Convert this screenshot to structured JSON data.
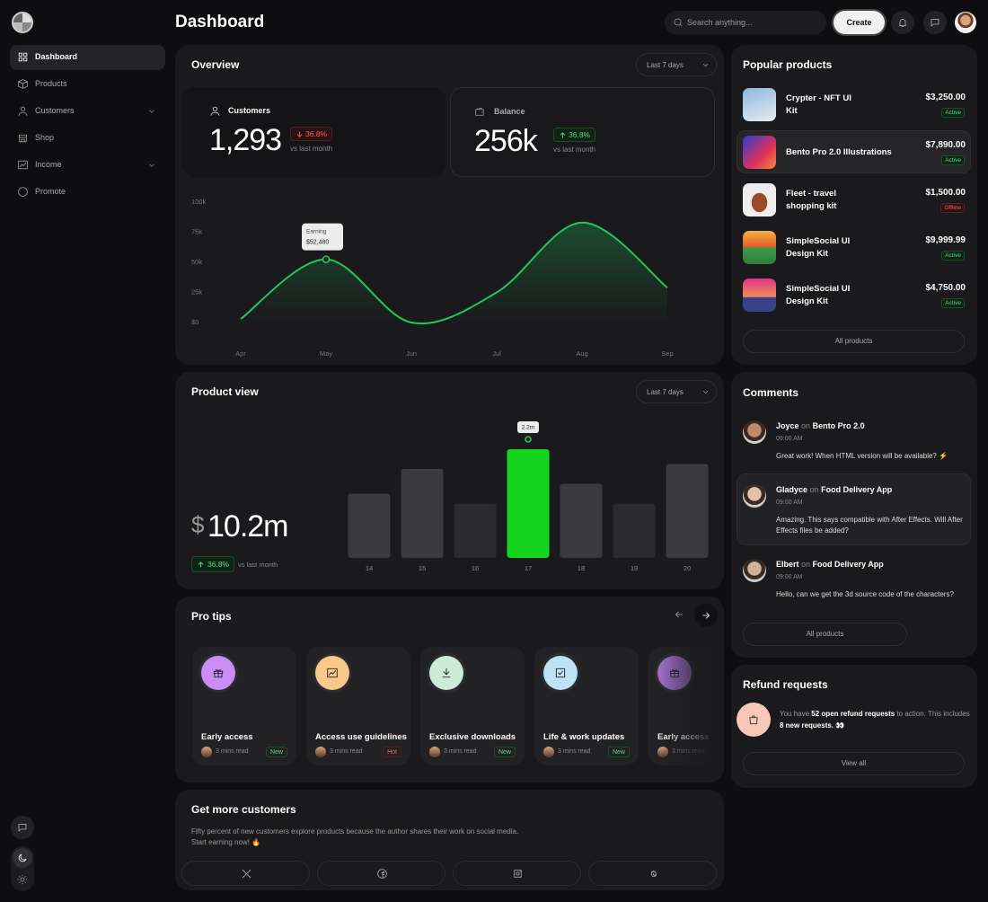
{
  "sidebar": {
    "nav": [
      "Dashboard",
      "Products",
      "Customers",
      "Shop",
      "Income",
      "Promote"
    ]
  },
  "header": {
    "title": "Dashboard",
    "search_placeholder": "Search anything...",
    "create_button": "Create"
  },
  "overview": {
    "title": "Overview",
    "period": "Last 7 days",
    "stats": [
      {
        "label": "Customers",
        "value": "1,293",
        "change": "36.8%",
        "note": "vs last month"
      },
      {
        "label": "Balance",
        "value": "256k",
        "change": "36.8%",
        "note": "vs last month"
      }
    ]
  },
  "chart_data": [
    {
      "type": "line",
      "categories": [
        "Apr",
        "May",
        "Jun",
        "Jul",
        "Aug",
        "Sep"
      ],
      "series": [
        {
          "name": "Earning",
          "color": "#22c55e",
          "values": [
            3000,
            52480,
            0,
            25000,
            83000,
            29000
          ],
          "value_labels": [
            null,
            "$52,480",
            null,
            null,
            null,
            null
          ]
        }
      ],
      "ylim": [
        0,
        100000
      ],
      "yticks": [
        {
          "value": 0,
          "label": "$0"
        },
        {
          "value": 25000,
          "label": "25k"
        },
        {
          "value": 50000,
          "label": "50k"
        },
        {
          "value": 75000,
          "label": "75k"
        },
        {
          "value": 100000,
          "label": "100k"
        }
      ]
    },
    {
      "type": "bar",
      "categories": [
        "14",
        "15",
        "16",
        "17",
        "18",
        "19",
        "20"
      ],
      "values": [
        1.3,
        1.8,
        1.1,
        2.2,
        1.5,
        1.1,
        1.9
      ],
      "value_labels": [
        null,
        null,
        null,
        "2.2m",
        null,
        null,
        null
      ],
      "colors": [
        "#3b3b3e",
        "#3b3b3e",
        "#2b2b2e",
        "#14d41e",
        "#3b3b3e",
        "#2b2b2e",
        "#3b3b3e"
      ]
    }
  ],
  "product_view": {
    "title": "Product view",
    "period": "Last 7 days",
    "currency": "$",
    "amount": "10.2m",
    "change": "36.8%",
    "note": "vs last month"
  },
  "pro_tips": {
    "title": "Pro tips",
    "cards": [
      {
        "title": "Early access",
        "time": "3 mins read",
        "tag": "New"
      },
      {
        "title": "Access use guidelines",
        "time": "3 mins read",
        "tag": "Hot"
      },
      {
        "title": "Exclusive downloads",
        "time": "3 mins read",
        "tag": "New"
      },
      {
        "title": "Life & work updates",
        "time": "3 mins read",
        "tag": "New"
      },
      {
        "title": "Early access",
        "time": "3 mins read"
      }
    ]
  },
  "get_more_customers": {
    "title": "Get more customers",
    "text": [
      "Fifty percent of new customers explore products because the author shares their work on social media.",
      "Start earning now! 🔥"
    ]
  },
  "popular_products": {
    "title": "Popular products",
    "button": "All products",
    "items": [
      {
        "name": "Crypter - NFT UI Kit",
        "price": "$3,250.00",
        "status": "Active"
      },
      {
        "name": "Bento Pro 2.0 Illustrations",
        "price": "$7,890.00",
        "status": "Active"
      },
      {
        "name": "Fleet - travel shopping kit",
        "price": "$1,500.00",
        "status": "Offline"
      },
      {
        "name": "SimpleSocial UI Design Kit",
        "price": "$9,999.99",
        "status": "Active"
      },
      {
        "name": "SimpleSocial UI Design Kit",
        "price": "$4,750.00",
        "status": "Active"
      }
    ]
  },
  "comments": {
    "title": "Comments",
    "connector": "on",
    "button": "All products",
    "items": [
      {
        "name": "Joyce",
        "product": "Bento Pro 2.0",
        "time": "09:00 AM",
        "text": "Great work! When HTML version will be available? ⚡"
      },
      {
        "name": "Gladyce",
        "product": "Food Delivery App",
        "time": "09:00 AM",
        "text": "Amazing. This says compatible with After Effects. Will After Effects files be added?"
      },
      {
        "name": "Elbert",
        "product": "Food Delivery App",
        "time": "09:00 AM",
        "text": "Hello, can we get the 3d source code of the characters?"
      }
    ]
  },
  "refund_requests": {
    "title": "Refund requests",
    "text": [
      "You have ",
      "52 open refund requests",
      " to action. This includes ",
      "8 new requests.",
      " 👀"
    ],
    "button": "View all"
  }
}
